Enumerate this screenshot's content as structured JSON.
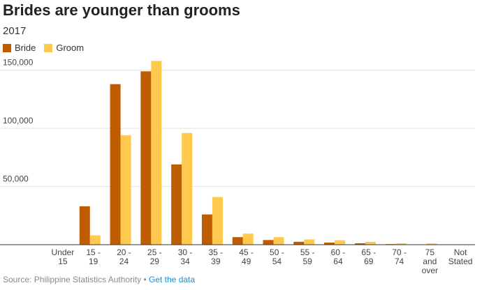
{
  "chart_data": {
    "type": "bar",
    "title": "Brides are younger than grooms",
    "subtitle": "2017",
    "categories": [
      [
        "Under",
        "15"
      ],
      [
        "15 -",
        "19"
      ],
      [
        "20 -",
        "24"
      ],
      [
        "25 -",
        "29"
      ],
      [
        "30 -",
        "34"
      ],
      [
        "35 -",
        "39"
      ],
      [
        "45 -",
        "49"
      ],
      [
        "50 -",
        "54"
      ],
      [
        "55 -",
        "59"
      ],
      [
        "60 -",
        "64"
      ],
      [
        "65 -",
        "69"
      ],
      [
        "70 -",
        "74"
      ],
      [
        "75",
        "and",
        "over"
      ],
      [
        "Not",
        "Stated"
      ]
    ],
    "series": [
      {
        "name": "Bride",
        "color": "#c05c00",
        "values": [
          0,
          33000,
          138000,
          149000,
          69000,
          26000,
          6500,
          4000,
          2500,
          1800,
          1200,
          500,
          300,
          0
        ]
      },
      {
        "name": "Groom",
        "color": "#ffc94d",
        "values": [
          0,
          8000,
          94000,
          158000,
          96000,
          41000,
          9500,
          6500,
          4500,
          3800,
          2500,
          1200,
          1000,
          0
        ]
      }
    ],
    "yticks": [
      {
        "value": 50000,
        "label": "50,000"
      },
      {
        "value": 100000,
        "label": "100,000"
      },
      {
        "value": 150000,
        "label": "150,000"
      }
    ],
    "ylim": [
      0,
      160000
    ],
    "grid": true,
    "legend_position": "top-left"
  },
  "footer": {
    "source": "Source: Philippine Statistics Authority",
    "separator": "•",
    "link": "Get the data"
  }
}
